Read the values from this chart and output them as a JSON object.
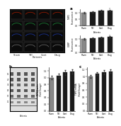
{
  "panel_b_ylabel": "TSPO/β-actin\n(Fold Change)",
  "panel_c_ylabel": "TSPO mRNA\n(Fold Change)",
  "categories": [
    "Sham",
    "TBI",
    "Cont",
    "Drug"
  ],
  "panel_b_values": [
    1.0,
    1.05,
    1.15,
    1.18
  ],
  "panel_b_errors": [
    0.05,
    0.06,
    0.07,
    0.06
  ],
  "panel_c_values": [
    1.0,
    1.08,
    1.12,
    1.15
  ],
  "panel_c_errors": [
    0.04,
    0.05,
    0.06,
    0.05
  ],
  "bar_color": "#1a1a1a",
  "bar_color_first": "#888888",
  "background_color": "#ffffff",
  "xlabel": "Patients"
}
